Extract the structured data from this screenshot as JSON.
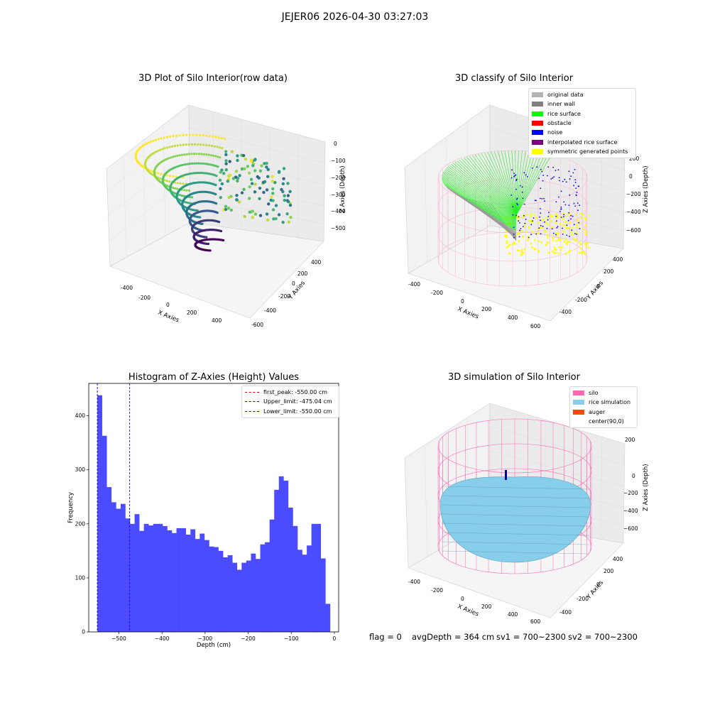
{
  "suptitle": "JEJER06 2026-04-30 03:27:03",
  "colors": {
    "hist_bar": "#4b4bff",
    "first_peak": "#e00000",
    "upper": "#0000ff",
    "lower": "#0000ff",
    "silo": "#ff69b4",
    "rice_sim": "#87ceeb",
    "auger": "#ff4500"
  },
  "panel1": {
    "title": "3D Plot of Silo Interior(row data)",
    "xlabel": "X Axies",
    "ylabel": "Y Axies",
    "zlabel": "Z Axies (Depth)",
    "x_ticks": [
      "-400",
      "-200",
      "0",
      "200",
      "400"
    ],
    "y_ticks": [
      "-600",
      "-400",
      "-200",
      "0",
      "200",
      "400"
    ],
    "z_ticks": [
      "0",
      "−100",
      "−200",
      "−300",
      "−400",
      "−500"
    ]
  },
  "panel2": {
    "title": "3D classify of Silo Interior",
    "xlabel": "X Axies",
    "ylabel": "Y Axies",
    "zlabel": "Z Axies (Depth)",
    "x_ticks": [
      "-400",
      "-200",
      "0",
      "200",
      "400",
      "600"
    ],
    "y_ticks": [
      "-400",
      "-200",
      "0",
      "200",
      "400"
    ],
    "z_ticks": [
      "200",
      "0",
      "−200",
      "−400",
      "−600"
    ],
    "legend": [
      {
        "label": "original data",
        "color": "#b3b3b3"
      },
      {
        "label": "inner wall",
        "color": "#808080"
      },
      {
        "label": "rice surface",
        "color": "#00ff00"
      },
      {
        "label": "obstacle",
        "color": "#ff0000"
      },
      {
        "label": "noise",
        "color": "#0000ff"
      },
      {
        "label": "interpolated rice surface",
        "color": "#800080"
      },
      {
        "label": "symmetric generated points",
        "color": "#ffff00"
      }
    ]
  },
  "panel3": {
    "title": "3D simulation of Silo Interior",
    "xlabel": "X Axies",
    "ylabel": "Y Axies",
    "zlabel": "Z Axies (Depth)",
    "x_ticks": [
      "-400",
      "-200",
      "0",
      "200",
      "400",
      "600"
    ],
    "y_ticks": [
      "-400",
      "-200",
      "0",
      "200",
      "400"
    ],
    "z_ticks": [
      "200",
      "0",
      "−200",
      "−400",
      "−600"
    ],
    "legend": [
      {
        "label": "silo",
        "color": "#ff69b4"
      },
      {
        "label": "rice simulation",
        "color": "#87ceeb"
      },
      {
        "label": "auger",
        "color": "#ff4500"
      },
      {
        "label": "center(90,0)",
        "color": ""
      }
    ]
  },
  "footer": {
    "flag": "flag = 0",
    "avg": "avgDepth = 364 cm",
    "sv1": "sv1 = 700~2300",
    "sv2": "sv2 = 700~2300"
  },
  "chart_data": {
    "type": "bar",
    "title": "Histogram of Z-Axies (Height) Values",
    "xlabel": "Depth (cm)",
    "ylabel": "Frequency",
    "xlim": [
      -570,
      10
    ],
    "ylim": [
      0,
      460
    ],
    "bin_start": -550,
    "bin_width": 10.8,
    "x_ticks": [
      -500,
      -400,
      -300,
      -200,
      -100,
      0
    ],
    "x_tick_labels": [
      "−500",
      "−400",
      "−300",
      "−200",
      "−100",
      "0"
    ],
    "y_ticks": [
      0,
      100,
      200,
      300,
      400
    ],
    "y_tick_labels": [
      "0",
      "100",
      "200",
      "300",
      "400"
    ],
    "values": [
      438,
      363,
      268,
      240,
      228,
      237,
      210,
      200,
      218,
      187,
      200,
      197,
      200,
      200,
      196,
      188,
      183,
      192,
      192,
      180,
      190,
      172,
      182,
      170,
      158,
      157,
      150,
      138,
      142,
      128,
      115,
      128,
      132,
      145,
      135,
      162,
      166,
      208,
      263,
      288,
      280,
      230,
      196,
      152,
      143,
      160,
      200,
      200,
      136,
      52
    ],
    "vlines": [
      {
        "label": "first_peak: -550.00 cm",
        "x": -550,
        "color": "#e00000"
      },
      {
        "label": "Upper_limit: -475.04 cm",
        "x": -475.04,
        "color": "#0000ff"
      },
      {
        "label": "Lower_limit: -550.00 cm",
        "x": -550,
        "color": "#0000ff"
      }
    ],
    "legend_position": "top-right"
  }
}
